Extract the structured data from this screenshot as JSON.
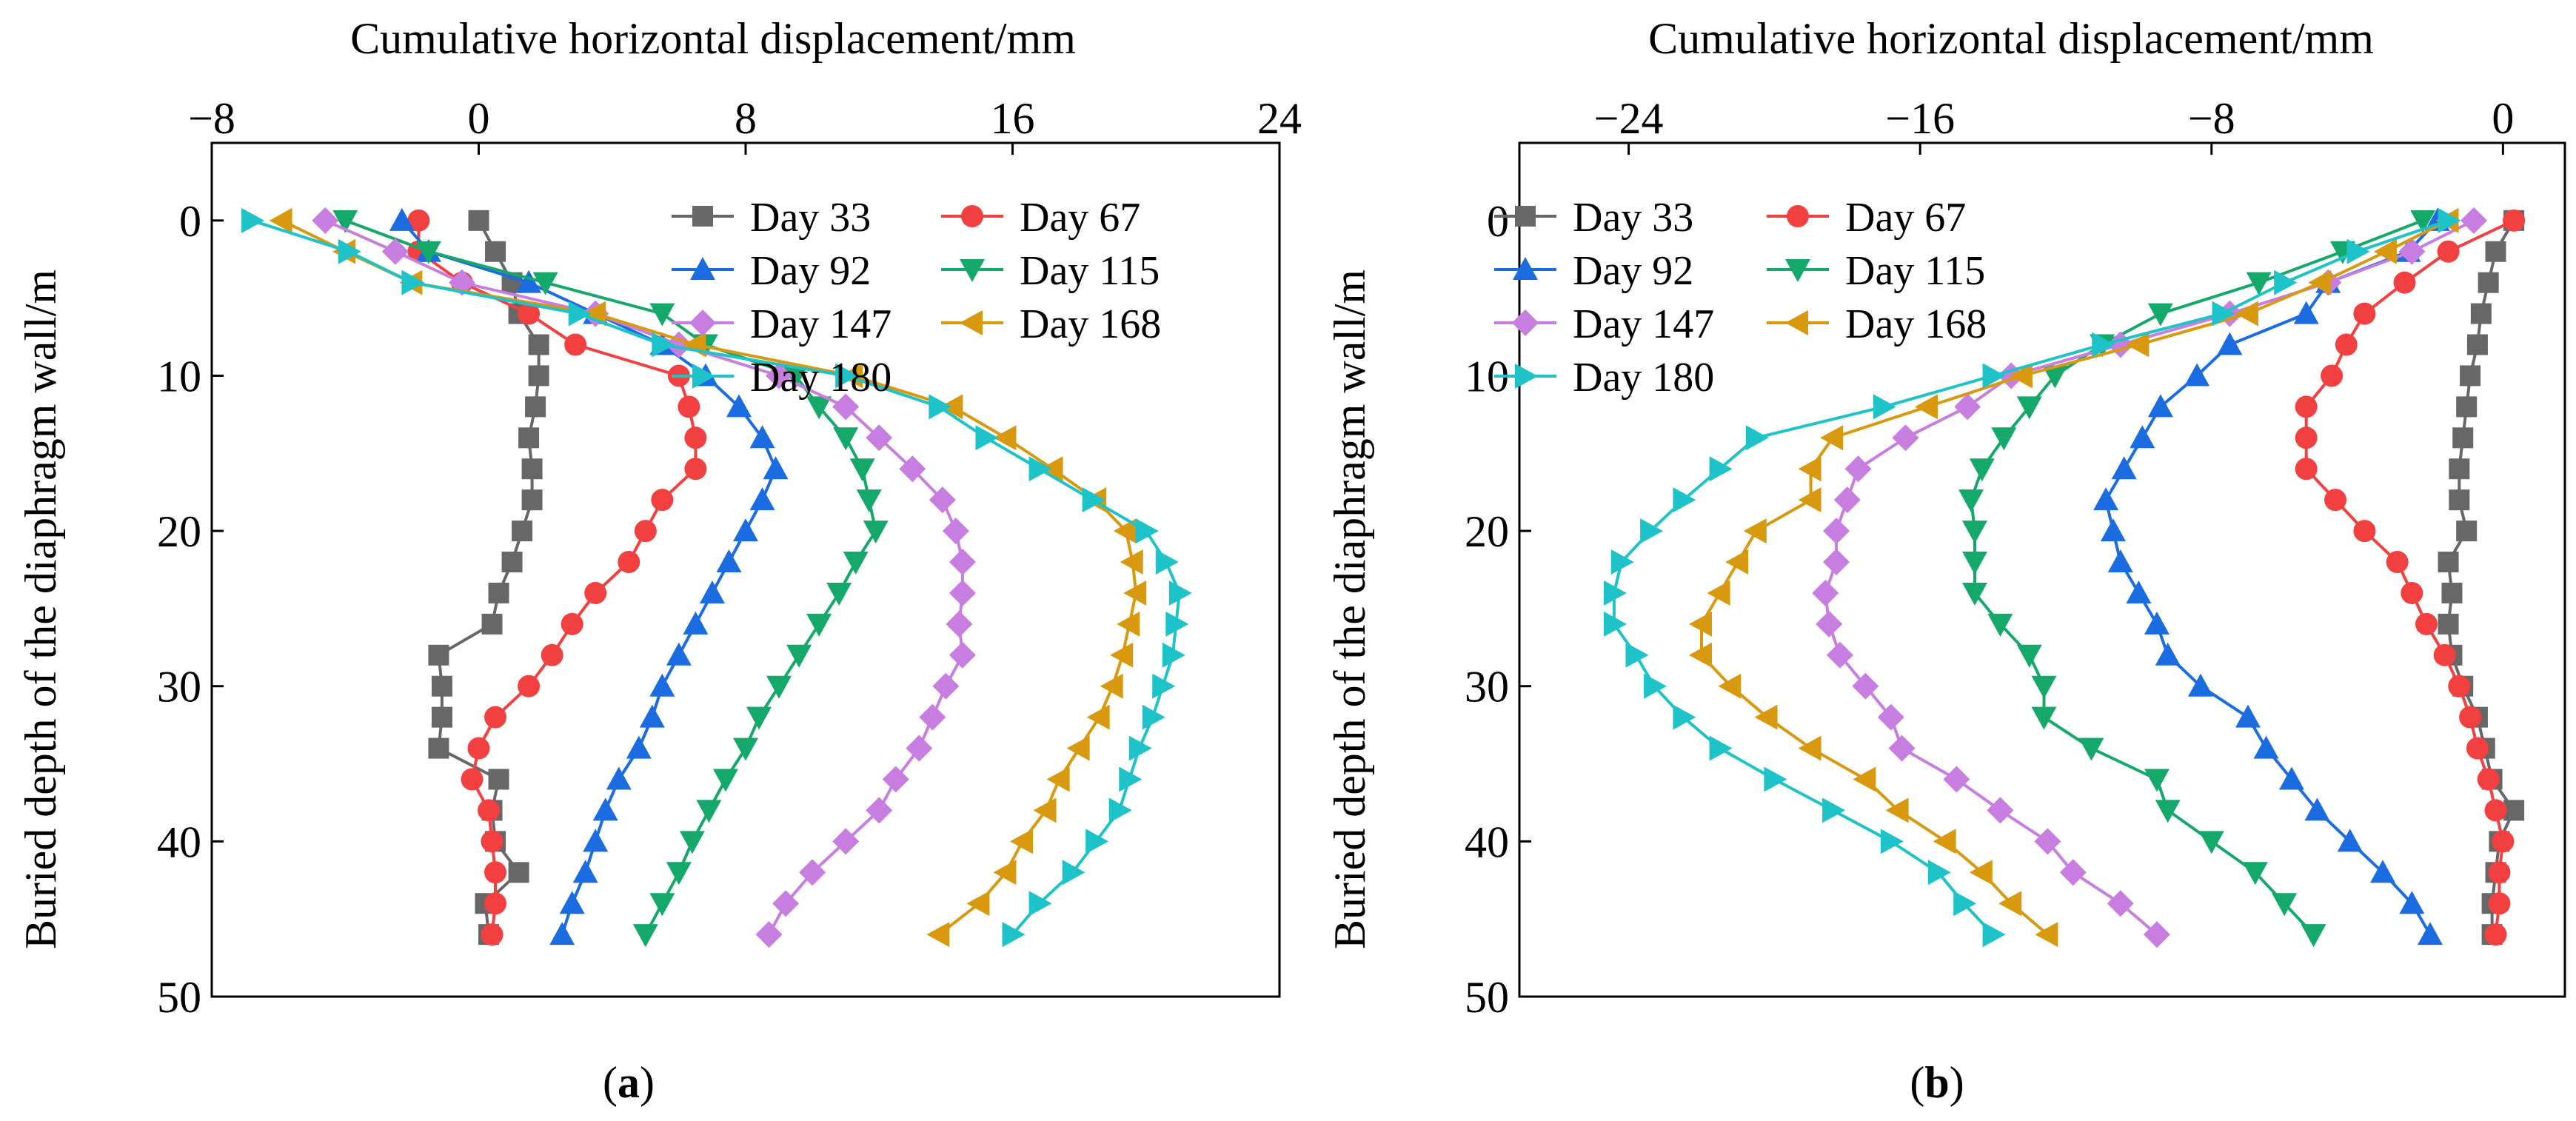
{
  "figure": {
    "panels": [
      {
        "caption_letter": "a"
      },
      {
        "caption_letter": "b"
      }
    ]
  },
  "chart_data": [
    {
      "type": "line",
      "panel": "a",
      "title": "",
      "xlabel": "Cumulative horizontal displacement/mm",
      "ylabel": "Buried depth of the diaphragm wall/m",
      "xlim": [
        -8,
        24
      ],
      "ylim": [
        50,
        -5
      ],
      "y_inverted": true,
      "xticks": [
        -8,
        0,
        8,
        16,
        24
      ],
      "yticks": [
        0,
        10,
        20,
        30,
        40,
        50
      ],
      "legend": {
        "position": "top-right",
        "columns": 2
      },
      "depths": [
        0,
        2,
        4,
        6,
        8,
        10,
        12,
        14,
        16,
        18,
        20,
        22,
        24,
        26,
        28,
        30,
        32,
        34,
        36,
        38,
        40,
        42,
        44,
        46
      ],
      "series": [
        {
          "name": "Day 33",
          "color": "#676767",
          "marker": "square",
          "x": [
            0.0,
            0.5,
            1.0,
            1.2,
            1.8,
            1.8,
            1.7,
            1.5,
            1.6,
            1.6,
            1.3,
            1.0,
            0.6,
            0.4,
            -1.2,
            -1.1,
            -1.1,
            -1.2,
            0.6,
            0.4,
            0.5,
            1.2,
            0.2,
            0.3
          ]
        },
        {
          "name": "Day 67",
          "color": "#f24040",
          "marker": "circle",
          "x": [
            -1.8,
            -1.8,
            -0.5,
            1.5,
            2.9,
            6.0,
            6.3,
            6.5,
            6.5,
            5.5,
            5.0,
            4.5,
            3.5,
            2.8,
            2.2,
            1.5,
            0.5,
            0,
            -0.2,
            0.3,
            0.4,
            0.5,
            0.5,
            0.4
          ]
        },
        {
          "name": "Day 92",
          "color": "#1a6ce0",
          "marker": "triangle-up",
          "x": [
            -2.3,
            -1.5,
            1.5,
            3.5,
            5.5,
            6.8,
            7.8,
            8.5,
            8.9,
            8.5,
            8.0,
            7.5,
            7.0,
            6.5,
            6.0,
            5.5,
            5.2,
            4.8,
            4.2,
            3.8,
            3.5,
            3.2,
            2.8,
            2.5
          ]
        },
        {
          "name": "Day 115",
          "color": "#14a86a",
          "marker": "triangle-down",
          "x": [
            -4.0,
            -1.5,
            2.0,
            5.5,
            6.8,
            9.5,
            10.2,
            11.0,
            11.5,
            11.7,
            11.9,
            11.3,
            10.8,
            10.2,
            9.6,
            9.0,
            8.4,
            8.0,
            7.4,
            6.9,
            6.4,
            6.0,
            5.5,
            5.0
          ]
        },
        {
          "name": "Day 147",
          "color": "#c77ee0",
          "marker": "diamond",
          "x": [
            -4.6,
            -2.5,
            -0.5,
            3.5,
            6.0,
            9.0,
            11.0,
            12.0,
            13.0,
            13.9,
            14.3,
            14.5,
            14.5,
            14.4,
            14.5,
            14.0,
            13.6,
            13.2,
            12.5,
            12.0,
            11.0,
            10.0,
            9.2,
            8.7
          ]
        },
        {
          "name": "Day 168",
          "color": "#d9990f",
          "marker": "triangle-left",
          "x": [
            -5.9,
            -4.0,
            -2.0,
            3.5,
            6.5,
            11.2,
            14.2,
            15.8,
            17.2,
            18.5,
            19.4,
            19.6,
            19.7,
            19.5,
            19.3,
            19.0,
            18.6,
            18.0,
            17.4,
            17.0,
            16.3,
            15.8,
            15.0,
            13.8
          ]
        },
        {
          "name": "Day 180",
          "color": "#1dc3c8",
          "marker": "triangle-right",
          "x": [
            -6.8,
            -3.9,
            -2.0,
            3.0,
            5.5,
            11.0,
            13.8,
            15.2,
            16.8,
            18.4,
            20.0,
            20.6,
            21.0,
            20.9,
            20.8,
            20.5,
            20.2,
            19.8,
            19.5,
            19.2,
            18.5,
            17.8,
            16.8,
            16.0
          ]
        }
      ]
    },
    {
      "type": "line",
      "panel": "b",
      "title": "",
      "xlabel": "Cumulative horizontal displacement/mm",
      "ylabel": "Buried depth of the diaphragm wall/m",
      "xlim": [
        -27,
        1.7
      ],
      "ylim": [
        50,
        -5
      ],
      "y_inverted": true,
      "xticks": [
        -24,
        -16,
        -8,
        0
      ],
      "yticks": [
        0,
        10,
        20,
        30,
        40,
        50
      ],
      "legend": {
        "position": "top-left",
        "columns": 2
      },
      "depths": [
        0,
        2,
        4,
        6,
        8,
        10,
        12,
        14,
        16,
        18,
        20,
        22,
        24,
        26,
        28,
        30,
        32,
        34,
        36,
        38,
        40,
        42,
        44,
        46
      ],
      "series": [
        {
          "name": "Day 33",
          "color": "#676767",
          "marker": "square",
          "x": [
            0.3,
            -0.2,
            -0.4,
            -0.6,
            -0.7,
            -0.9,
            -1.0,
            -1.1,
            -1.2,
            -1.2,
            -1.0,
            -1.5,
            -1.4,
            -1.5,
            -1.4,
            -1.1,
            -0.7,
            -0.5,
            -0.3,
            0.3,
            -0.1,
            -0.2,
            -0.3,
            -0.3
          ]
        },
        {
          "name": "Day 67",
          "color": "#f24040",
          "marker": "circle",
          "x": [
            0.3,
            -1.5,
            -2.7,
            -3.8,
            -4.3,
            -4.7,
            -5.4,
            -5.4,
            -5.4,
            -4.6,
            -3.8,
            -2.9,
            -2.5,
            -2.1,
            -1.6,
            -1.2,
            -0.9,
            -0.7,
            -0.4,
            -0.2,
            0.0,
            -0.1,
            -0.1,
            -0.2
          ]
        },
        {
          "name": "Day 92",
          "color": "#1a6ce0",
          "marker": "triangle-up",
          "x": [
            -1.8,
            -2.6,
            -4.8,
            -5.4,
            -7.5,
            -8.4,
            -9.4,
            -9.9,
            -10.4,
            -10.9,
            -10.7,
            -10.5,
            -10.0,
            -9.5,
            -9.2,
            -8.3,
            -7.0,
            -6.5,
            -5.8,
            -5.1,
            -4.2,
            -3.3,
            -2.5,
            -2.0
          ]
        },
        {
          "name": "Day 115",
          "color": "#14a86a",
          "marker": "triangle-down",
          "x": [
            -2.2,
            -4.4,
            -6.7,
            -9.4,
            -11.0,
            -12.3,
            -13.0,
            -13.7,
            -14.3,
            -14.6,
            -14.5,
            -14.5,
            -14.5,
            -13.8,
            -13.0,
            -12.6,
            -12.6,
            -11.3,
            -9.5,
            -9.2,
            -8.0,
            -6.8,
            -6.0,
            -5.2
          ]
        },
        {
          "name": "Day 147",
          "color": "#c77ee0",
          "marker": "diamond",
          "x": [
            -0.8,
            -2.5,
            -4.8,
            -7.5,
            -10.5,
            -13.5,
            -14.7,
            -16.4,
            -17.7,
            -18.0,
            -18.3,
            -18.3,
            -18.6,
            -18.5,
            -18.2,
            -17.5,
            -16.8,
            -16.5,
            -15.0,
            -13.8,
            -12.5,
            -11.8,
            -10.5,
            -9.5
          ]
        },
        {
          "name": "Day 168",
          "color": "#d9990f",
          "marker": "triangle-left",
          "x": [
            -1.5,
            -3.2,
            -5.0,
            -7.0,
            -10.0,
            -13.2,
            -15.8,
            -18.4,
            -19.0,
            -19.0,
            -20.5,
            -21.0,
            -21.5,
            -22.0,
            -22.0,
            -21.2,
            -20.2,
            -19.0,
            -17.5,
            -16.6,
            -15.3,
            -14.3,
            -13.5,
            -12.5
          ]
        },
        {
          "name": "Day 180",
          "color": "#1dc3c8",
          "marker": "triangle-right",
          "x": [
            -1.5,
            -4.0,
            -6.0,
            -7.7,
            -11.0,
            -14.0,
            -17.0,
            -20.5,
            -21.5,
            -22.5,
            -23.4,
            -24.2,
            -24.4,
            -24.4,
            -23.8,
            -23.3,
            -22.5,
            -21.5,
            -20.0,
            -18.4,
            -16.8,
            -15.5,
            -14.8,
            -14.0
          ]
        }
      ]
    }
  ]
}
